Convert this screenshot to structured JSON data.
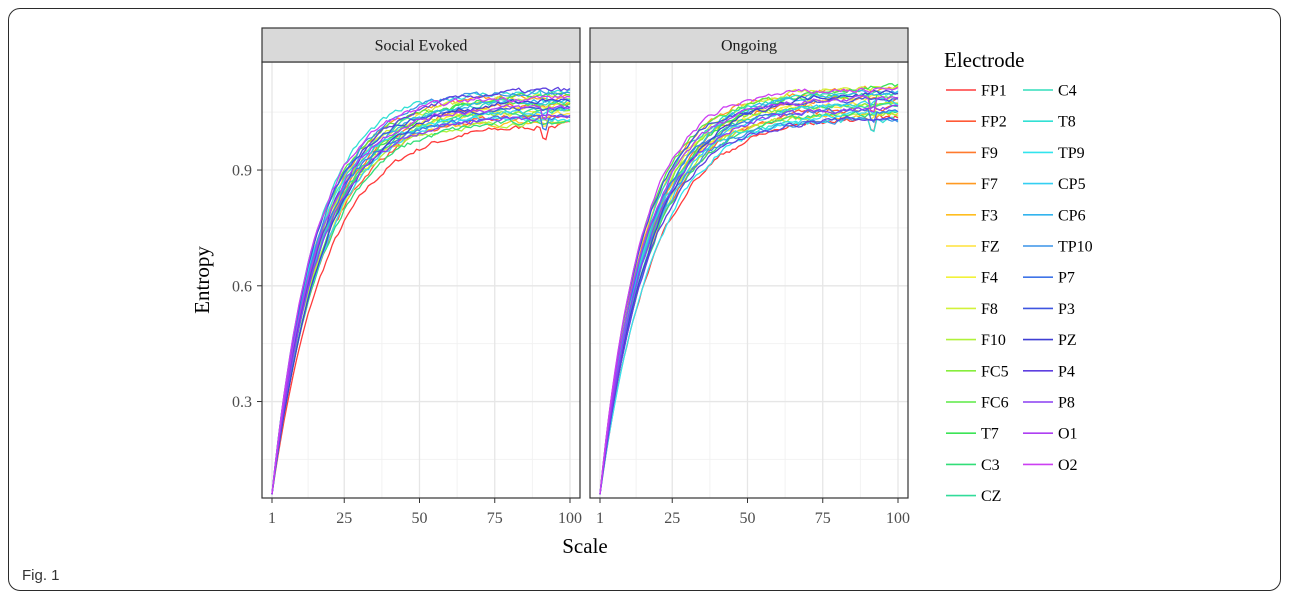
{
  "caption": "Fig. 1",
  "chart_data": {
    "type": "line",
    "xlabel": "Scale",
    "ylabel": "Entropy",
    "xlim": [
      1,
      100
    ],
    "ylim": [
      0.05,
      1.18
    ],
    "x_ticks": [
      1,
      25,
      50,
      75,
      100
    ],
    "x_tick_labels": [
      "1",
      "25",
      "50",
      "75",
      "100"
    ],
    "y_ticks": [
      0.3,
      0.6,
      0.9
    ],
    "y_tick_labels": [
      "0.3",
      "0.6",
      "0.9"
    ],
    "grid": true,
    "legend_title": "Electrode",
    "legend_position": "right",
    "panels": [
      {
        "title": "Social Evoked",
        "start": 0.06,
        "plateau_min": 1.02,
        "plateau_max": 1.11
      },
      {
        "title": "Ongoing",
        "start": 0.06,
        "plateau_min": 1.03,
        "plateau_max": 1.12
      }
    ],
    "series": [
      {
        "name": "FP1",
        "color": "#FF3B3B"
      },
      {
        "name": "FP2",
        "color": "#FF5A36"
      },
      {
        "name": "F9",
        "color": "#FF7A2E"
      },
      {
        "name": "F7",
        "color": "#FF9A22"
      },
      {
        "name": "F3",
        "color": "#FFBE20"
      },
      {
        "name": "FZ",
        "color": "#FFE23A"
      },
      {
        "name": "F4",
        "color": "#F2F23A"
      },
      {
        "name": "F8",
        "color": "#D2F23A"
      },
      {
        "name": "F10",
        "color": "#B0F23A"
      },
      {
        "name": "FC5",
        "color": "#86EE3C"
      },
      {
        "name": "FC6",
        "color": "#5CEA45"
      },
      {
        "name": "T7",
        "color": "#3CE456"
      },
      {
        "name": "C3",
        "color": "#32DE78"
      },
      {
        "name": "CZ",
        "color": "#32DC9A"
      },
      {
        "name": "C4",
        "color": "#32DEBB"
      },
      {
        "name": "T8",
        "color": "#32E0D4"
      },
      {
        "name": "TP9",
        "color": "#32E4EE"
      },
      {
        "name": "CP5",
        "color": "#34CFF2"
      },
      {
        "name": "CP6",
        "color": "#33B4EE"
      },
      {
        "name": "TP10",
        "color": "#3A94E8"
      },
      {
        "name": "P7",
        "color": "#3F74E8"
      },
      {
        "name": "P3",
        "color": "#3E55E0"
      },
      {
        "name": "PZ",
        "color": "#3F3FD4"
      },
      {
        "name": "P4",
        "color": "#5E3FE0"
      },
      {
        "name": "P8",
        "color": "#8A3FF2"
      },
      {
        "name": "O1",
        "color": "#AE3FF2"
      },
      {
        "name": "O2",
        "color": "#CC3FF2"
      }
    ]
  }
}
